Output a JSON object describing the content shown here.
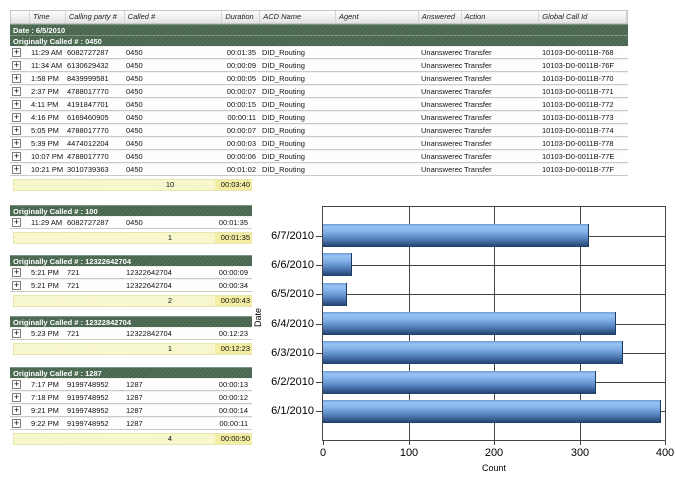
{
  "table": {
    "columns": [
      "",
      "Time",
      "Calling party #",
      "Called #",
      "Duration",
      "ACD Name",
      "Agent",
      "Answered",
      "Action",
      "Global Call Id"
    ],
    "expand_glyph": "+"
  },
  "groups": [
    {
      "date_label": "Date : 6/5/2010",
      "title": "Originally Called # : 0450",
      "rows": [
        {
          "time": "11:29 AM",
          "calling": "6082727287",
          "called": "0450",
          "duration": "00:01:35",
          "acd": "DID_Routing",
          "agent": "",
          "answered": "Unanswered",
          "action": "Transfer",
          "gcid": "10103-D0-0011B-768"
        },
        {
          "time": "11:34 AM",
          "calling": "6130629432",
          "called": "0450",
          "duration": "00:00:09",
          "acd": "DID_Routing",
          "agent": "",
          "answered": "Unanswered",
          "action": "Transfer",
          "gcid": "10103-D0-0011B-76F"
        },
        {
          "time": "1:58 PM",
          "calling": "8439999581",
          "called": "0450",
          "duration": "00:00:05",
          "acd": "DID_Routing",
          "agent": "",
          "answered": "Unanswered",
          "action": "Transfer",
          "gcid": "10103-D0-0011B-770"
        },
        {
          "time": "2:37 PM",
          "calling": "4788017770",
          "called": "0450",
          "duration": "00:00:07",
          "acd": "DID_Routing",
          "agent": "",
          "answered": "Unanswered",
          "action": "Transfer",
          "gcid": "10103-D0-0011B-771"
        },
        {
          "time": "4:11 PM",
          "calling": "4191847701",
          "called": "0450",
          "duration": "00:00:15",
          "acd": "DID_Routing",
          "agent": "",
          "answered": "Unanswered",
          "action": "Transfer",
          "gcid": "10103-D0-0011B-772"
        },
        {
          "time": "4:16 PM",
          "calling": "6169460905",
          "called": "0450",
          "duration": "00:00:11",
          "acd": "DID_Routing",
          "agent": "",
          "answered": "Unanswered",
          "action": "Transfer",
          "gcid": "10103-D0-0011B-773"
        },
        {
          "time": "5:05 PM",
          "calling": "4788017770",
          "called": "0450",
          "duration": "00:00:07",
          "acd": "DID_Routing",
          "agent": "",
          "answered": "Unanswered",
          "action": "Transfer",
          "gcid": "10103-D0-0011B-774"
        },
        {
          "time": "5:39 PM",
          "calling": "4474012204",
          "called": "0450",
          "duration": "00:00:03",
          "acd": "DID_Routing",
          "agent": "",
          "answered": "Unanswered",
          "action": "Transfer",
          "gcid": "10103-D0-0011B-778"
        },
        {
          "time": "10:07 PM",
          "calling": "4788017770",
          "called": "0450",
          "duration": "00:00:06",
          "acd": "DID_Routing",
          "agent": "",
          "answered": "Unanswered",
          "action": "Transfer",
          "gcid": "10103-D0-0011B-77E"
        },
        {
          "time": "10:21 PM",
          "calling": "3010739363",
          "called": "0450",
          "duration": "00:01:02",
          "acd": "DID_Routing",
          "agent": "",
          "answered": "Unanswered",
          "action": "Transfer",
          "gcid": "10103-D0-0011B-77F"
        }
      ],
      "summary": {
        "count": "10",
        "duration": "00:03:40"
      }
    },
    {
      "title": "Originally Called # : 100",
      "rows": [
        {
          "time": "11:29 AM",
          "calling": "6082727287",
          "called": "0450",
          "duration": "00:01:35"
        }
      ],
      "summary": {
        "count": "1",
        "duration": "00:01:35"
      }
    },
    {
      "title": "Originally Called # : 12322642704",
      "rows": [
        {
          "time": "5:21 PM",
          "calling": "721",
          "called": "12322642704",
          "duration": "00:00:09"
        },
        {
          "time": "5:21 PM",
          "calling": "721",
          "called": "12322642704",
          "duration": "00:00:34"
        }
      ],
      "summary": {
        "count": "2",
        "duration": "00:00:43"
      }
    },
    {
      "title": "Originally Called # : 12322842704",
      "rows": [
        {
          "time": "5:23 PM",
          "calling": "721",
          "called": "12322842704",
          "duration": "00:12:23"
        }
      ],
      "summary": {
        "count": "1",
        "duration": "00:12:23"
      }
    },
    {
      "title": "Originally Called # : 1287",
      "rows": [
        {
          "time": "7:17 PM",
          "calling": "9199748952",
          "called": "1287",
          "duration": "00:00:13"
        },
        {
          "time": "7:18 PM",
          "calling": "9199748952",
          "called": "1287",
          "duration": "00:00:12"
        },
        {
          "time": "9:21 PM",
          "calling": "9199748952",
          "called": "1287",
          "duration": "00:00:14"
        },
        {
          "time": "9:22 PM",
          "calling": "9199748952",
          "called": "1287",
          "duration": "00:00:11"
        }
      ],
      "summary": {
        "count": "4",
        "duration": "00:00:50"
      }
    }
  ],
  "chart_data": {
    "type": "bar",
    "orientation": "horizontal",
    "title": "",
    "xlabel": "Count",
    "ylabel": "Date",
    "categories": [
      "6/7/2010",
      "6/6/2010",
      "6/5/2010",
      "6/4/2010",
      "6/3/2010",
      "6/2/2010",
      "6/1/2010"
    ],
    "values": [
      310,
      33,
      27,
      342,
      350,
      318,
      394
    ],
    "xlim": [
      0,
      400
    ],
    "xticks": [
      0,
      100,
      200,
      300,
      400
    ],
    "grid": true,
    "legend": "none",
    "bar_color_light": "#9ac3f2",
    "bar_color_dark": "#203f66",
    "grid_color": "#454545"
  }
}
